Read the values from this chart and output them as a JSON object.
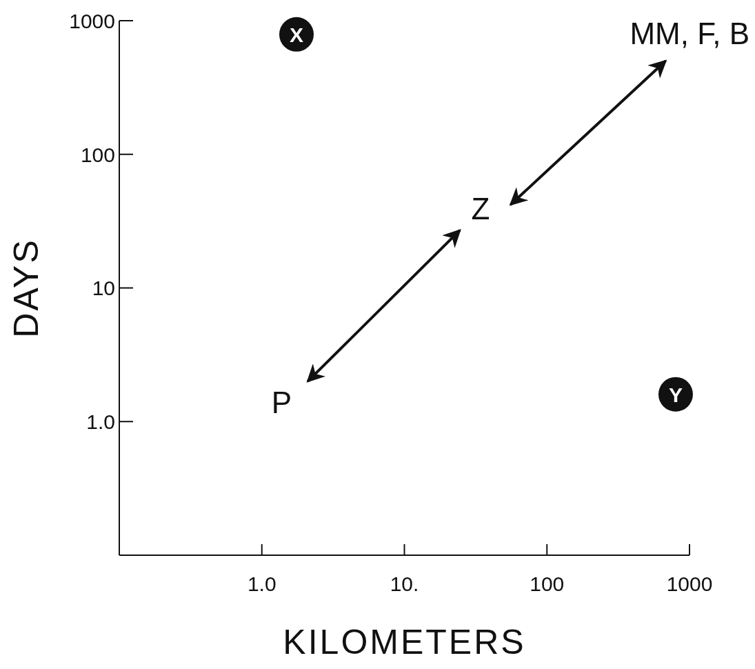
{
  "chart_data": {
    "type": "line",
    "xlabel": "KILOMETERS",
    "ylabel": "DAYS",
    "log": "xy",
    "xlim": [
      0.1,
      1000
    ],
    "ylim": [
      0.1,
      1000
    ],
    "xticks": [
      {
        "value": 1,
        "label": "1.0"
      },
      {
        "value": 10,
        "label": "10."
      },
      100,
      1000
    ],
    "yticks": [
      {
        "value": 1,
        "label": "1.0"
      },
      10,
      100,
      1000
    ],
    "marker": "none",
    "line_style": "solid",
    "series": [
      {
        "color": "#111111",
        "x": [
          2.1,
          24.5
        ],
        "values": [
          2.0,
          27
        ],
        "value_labels": [
          "P",
          "Z"
        ]
      },
      {
        "color": "#111111",
        "x": [
          55.6,
          680
        ],
        "values": [
          42,
          500
        ],
        "value_labels": [
          null,
          "MM, F, B"
        ]
      },
      {
        "type": "scatter",
        "marker": "circle",
        "color": "#111111",
        "x": [
          1.75,
          800
        ],
        "values": [
          790,
          1.6
        ],
        "value_labels": [
          "X",
          "Y"
        ]
      }
    ]
  }
}
